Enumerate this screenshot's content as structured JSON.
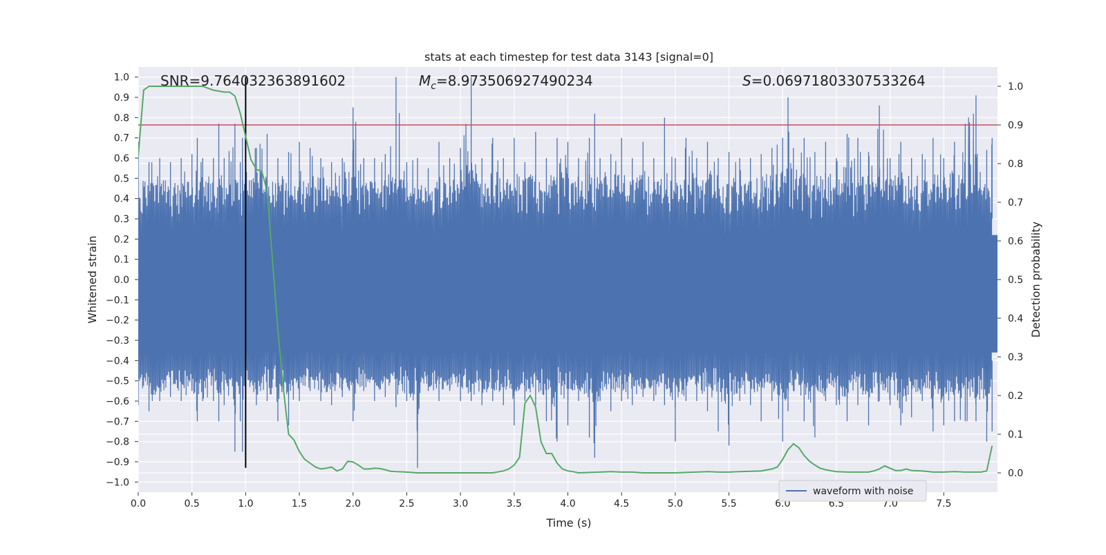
{
  "chart_data": {
    "type": "line",
    "title": "stats at each timestep for test data 3143 [signal=0]",
    "xlabel": "Time (s)",
    "ylabel_left": "Whitened strain",
    "ylabel_right": "Detection probability",
    "xlim": [
      0.0,
      8.0
    ],
    "ylim_left": [
      -1.05,
      1.05
    ],
    "ylim_right": [
      -0.05,
      1.05
    ],
    "x_ticks": [
      "0.0",
      "0.5",
      "1.0",
      "1.5",
      "2.0",
      "2.5",
      "3.0",
      "3.5",
      "4.0",
      "4.5",
      "5.0",
      "5.5",
      "6.0",
      "6.5",
      "7.0",
      "7.5"
    ],
    "y_ticks_left": [
      "1.0",
      "0.9",
      "0.8",
      "0.7",
      "0.6",
      "0.5",
      "0.4",
      "0.3",
      "0.2",
      "0.1",
      "0.0",
      "−0.1",
      "−0.2",
      "−0.3",
      "−0.4",
      "−0.5",
      "−0.6",
      "−0.7",
      "−0.8",
      "−0.9",
      "−1.0"
    ],
    "y_ticks_right": [
      "1.0",
      "0.9",
      "0.8",
      "0.7",
      "0.6",
      "0.5",
      "0.4",
      "0.3",
      "0.2",
      "0.1",
      "0.0"
    ],
    "annotations": {
      "snr": "SNR=9.764032363891602",
      "mc_symbol": "M",
      "mc_sub": "c",
      "mc_value": "=8.973506927490234",
      "s_symbol": "S",
      "s_value": "=0.06971803307533264"
    },
    "threshold_line": {
      "y_probability": 0.9,
      "color": "#c44e52"
    },
    "vertical_marker": {
      "x": 1.0,
      "y_range": [
        -0.93,
        1.0
      ],
      "color": "#000000"
    },
    "legend": {
      "position": "lower-right",
      "entries": [
        "waveform with noise"
      ]
    },
    "grid": true,
    "background": "#eaeaf2",
    "series": [
      {
        "name": "waveform with noise",
        "axis": "left",
        "color": "#4c72b0",
        "note_envelope": "dense noise; upper/lower extrema envelope",
        "x": [
          0.0,
          0.1,
          0.2,
          0.3,
          0.4,
          0.5,
          0.55,
          0.6,
          0.7,
          0.75,
          0.8,
          0.9,
          0.95,
          0.97,
          1.0,
          1.1,
          1.2,
          1.3,
          1.4,
          1.5,
          1.6,
          1.7,
          1.8,
          1.9,
          2.0,
          2.1,
          2.2,
          2.3,
          2.4,
          2.5,
          2.6,
          2.7,
          2.8,
          2.9,
          3.0,
          3.1,
          3.2,
          3.3,
          3.4,
          3.5,
          3.6,
          3.7,
          3.8,
          3.9,
          4.0,
          4.1,
          4.2,
          4.25,
          4.3,
          4.4,
          4.5,
          4.6,
          4.7,
          4.8,
          4.9,
          5.0,
          5.1,
          5.2,
          5.3,
          5.4,
          5.5,
          5.6,
          5.7,
          5.8,
          5.9,
          6.0,
          6.05,
          6.1,
          6.2,
          6.3,
          6.4,
          6.5,
          6.6,
          6.7,
          6.8,
          6.9,
          7.0,
          7.1,
          7.2,
          7.3,
          7.4,
          7.5,
          7.6,
          7.7,
          7.8,
          7.9,
          7.95
        ],
        "upper": [
          0.68,
          0.58,
          0.6,
          0.58,
          0.6,
          0.62,
          0.7,
          0.6,
          0.6,
          0.77,
          0.6,
          0.77,
          0.58,
          0.7,
          0.7,
          0.65,
          0.72,
          0.6,
          0.63,
          0.68,
          0.65,
          0.6,
          0.58,
          0.6,
          0.85,
          0.6,
          0.6,
          0.62,
          1.0,
          0.58,
          0.6,
          0.55,
          0.68,
          0.6,
          0.65,
          1.0,
          0.6,
          0.7,
          0.6,
          0.7,
          0.58,
          0.73,
          0.6,
          0.7,
          0.68,
          0.6,
          0.7,
          0.82,
          0.6,
          0.62,
          0.7,
          0.6,
          0.68,
          0.6,
          0.8,
          0.6,
          0.7,
          0.6,
          0.68,
          0.6,
          0.63,
          0.6,
          0.6,
          0.62,
          0.65,
          0.7,
          0.9,
          0.65,
          0.7,
          0.63,
          0.68,
          0.6,
          0.72,
          0.7,
          0.63,
          0.86,
          0.6,
          0.68,
          0.6,
          0.62,
          0.7,
          0.6,
          0.68,
          0.77,
          0.91,
          0.64,
          0.7
        ],
        "lower": [
          -0.62,
          -0.65,
          -0.6,
          -0.58,
          -0.6,
          -0.55,
          -0.7,
          -0.6,
          -0.6,
          -0.7,
          -0.62,
          -0.85,
          -0.7,
          -0.85,
          -0.6,
          -0.62,
          -0.6,
          -0.7,
          -0.72,
          -0.6,
          -0.55,
          -0.6,
          -0.62,
          -0.58,
          -0.7,
          -0.55,
          -0.6,
          -0.58,
          -0.63,
          -0.6,
          -0.93,
          -0.55,
          -0.6,
          -0.55,
          -0.6,
          -0.6,
          -0.62,
          -0.6,
          -0.62,
          -0.72,
          -0.6,
          -0.62,
          -0.7,
          -0.8,
          -0.72,
          -0.6,
          -0.78,
          -0.88,
          -0.6,
          -0.65,
          -0.6,
          -0.62,
          -0.58,
          -0.6,
          -0.62,
          -0.8,
          -0.6,
          -0.6,
          -0.65,
          -0.75,
          -0.82,
          -0.6,
          -0.62,
          -0.7,
          -0.6,
          -0.8,
          -0.65,
          -0.55,
          -0.7,
          -0.78,
          -0.6,
          -0.62,
          -0.7,
          -0.62,
          -0.72,
          -0.6,
          -0.62,
          -0.72,
          -0.68,
          -0.6,
          -0.75,
          -0.72,
          -0.7,
          -0.7,
          -0.7,
          -0.8,
          -0.75
        ]
      },
      {
        "name": "detection probability",
        "axis": "right",
        "color": "#55a868",
        "x": [
          0.0,
          0.05,
          0.1,
          0.2,
          0.3,
          0.4,
          0.5,
          0.6,
          0.7,
          0.8,
          0.85,
          0.9,
          0.95,
          1.0,
          1.05,
          1.1,
          1.15,
          1.2,
          1.3,
          1.35,
          1.4,
          1.45,
          1.5,
          1.55,
          1.6,
          1.65,
          1.7,
          1.75,
          1.8,
          1.85,
          1.9,
          1.95,
          2.0,
          2.05,
          2.1,
          2.15,
          2.2,
          2.25,
          2.3,
          2.35,
          2.4,
          2.5,
          2.6,
          2.7,
          2.8,
          2.9,
          3.0,
          3.1,
          3.2,
          3.3,
          3.4,
          3.45,
          3.5,
          3.55,
          3.6,
          3.65,
          3.7,
          3.75,
          3.8,
          3.85,
          3.9,
          3.95,
          4.0,
          4.05,
          4.1,
          4.2,
          4.3,
          4.4,
          4.5,
          4.6,
          4.7,
          4.8,
          4.9,
          5.0,
          5.1,
          5.2,
          5.3,
          5.4,
          5.5,
          5.6,
          5.7,
          5.8,
          5.9,
          5.95,
          6.0,
          6.05,
          6.1,
          6.15,
          6.2,
          6.25,
          6.3,
          6.35,
          6.4,
          6.5,
          6.6,
          6.7,
          6.8,
          6.85,
          6.9,
          6.95,
          7.0,
          7.05,
          7.1,
          7.15,
          7.2,
          7.3,
          7.4,
          7.5,
          7.6,
          7.7,
          7.8,
          7.85,
          7.9,
          7.95
        ],
        "values": [
          0.82,
          0.99,
          1.0,
          1.0,
          1.0,
          1.0,
          1.0,
          1.0,
          0.99,
          0.985,
          0.985,
          0.975,
          0.93,
          0.87,
          0.81,
          0.785,
          0.78,
          0.73,
          0.37,
          0.22,
          0.1,
          0.085,
          0.055,
          0.035,
          0.025,
          0.015,
          0.01,
          0.012,
          0.015,
          0.005,
          0.01,
          0.03,
          0.028,
          0.02,
          0.01,
          0.01,
          0.012,
          0.011,
          0.008,
          0.004,
          0.003,
          0.002,
          0.0,
          0.0,
          0.0,
          0.0,
          0.0,
          0.0,
          0.0,
          0.0,
          0.005,
          0.01,
          0.02,
          0.04,
          0.18,
          0.2,
          0.17,
          0.08,
          0.05,
          0.05,
          0.025,
          0.01,
          0.005,
          0.003,
          0.0,
          0.001,
          0.002,
          0.003,
          0.002,
          0.002,
          0.0,
          0.0,
          0.0,
          0.0,
          0.001,
          0.002,
          0.003,
          0.002,
          0.002,
          0.003,
          0.004,
          0.005,
          0.01,
          0.015,
          0.035,
          0.06,
          0.075,
          0.065,
          0.045,
          0.03,
          0.02,
          0.012,
          0.008,
          0.003,
          0.002,
          0.002,
          0.002,
          0.005,
          0.01,
          0.018,
          0.012,
          0.006,
          0.006,
          0.01,
          0.006,
          0.005,
          0.002,
          0.002,
          0.003,
          0.002,
          0.002,
          0.002,
          0.005,
          0.07
        ]
      }
    ]
  }
}
